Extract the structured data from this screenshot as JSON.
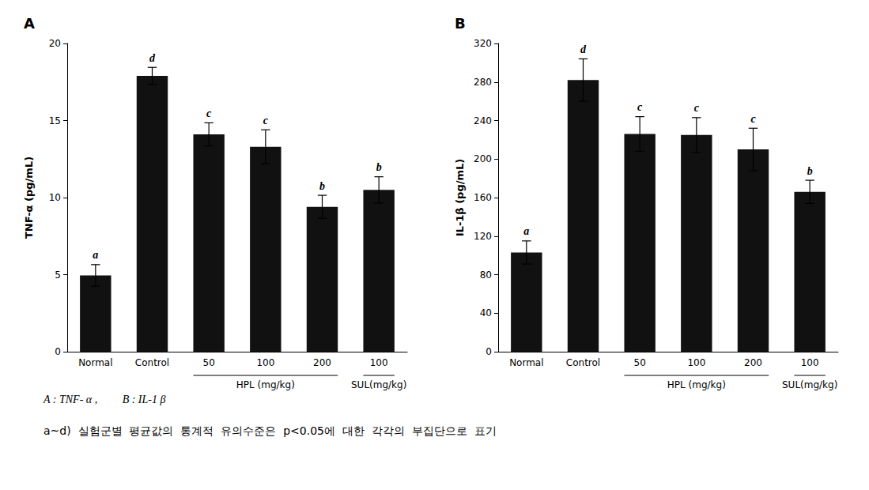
{
  "chart_data": [
    {
      "type": "bar",
      "title": "A",
      "ylabel": "TNF-α (pg/mL)",
      "categories": [
        "Normal",
        "Control",
        "50",
        "100",
        "200",
        "100"
      ],
      "values": [
        4.95,
        17.9,
        14.1,
        13.3,
        9.4,
        10.5
      ],
      "errors": [
        0.7,
        0.55,
        0.75,
        1.1,
        0.75,
        0.85
      ],
      "letters": [
        "a",
        "d",
        "c",
        "c",
        "b",
        "b"
      ],
      "color": "#111111",
      "ylim": [
        0,
        20
      ],
      "yticks": [
        0,
        5,
        10,
        15,
        20
      ],
      "grid": false,
      "groups": [
        {
          "label": "HPL (mg/kg)",
          "from": 2,
          "to": 4
        },
        {
          "label": "SUL(mg/kg)",
          "from": 5,
          "to": 5
        }
      ],
      "annotations": [
        "A : TNF- α ,         B : IL-1 β",
        "a~d)  실험군별  평균값의  통계적  유의수준은  p<0.05에  대한  각각의  부집단으로  표기"
      ]
    },
    {
      "type": "bar",
      "title": "B",
      "ylabel": "IL-1β (pg/mL)",
      "categories": [
        "Normal",
        "Control",
        "50",
        "100",
        "200",
        "100"
      ],
      "values": [
        103,
        282,
        226,
        225,
        210,
        166
      ],
      "errors": [
        12,
        22,
        18,
        18,
        22,
        12
      ],
      "letters": [
        "a",
        "d",
        "c",
        "c",
        "c",
        "b"
      ],
      "color": "#111111",
      "ylim": [
        0,
        320
      ],
      "yticks": [
        0,
        40,
        80,
        120,
        160,
        200,
        240,
        280,
        320
      ],
      "grid": false,
      "groups": [
        {
          "label": "HPL (mg/kg)",
          "from": 2,
          "to": 4
        },
        {
          "label": "SUL(mg/kg)",
          "from": 5,
          "to": 5
        }
      ]
    }
  ]
}
